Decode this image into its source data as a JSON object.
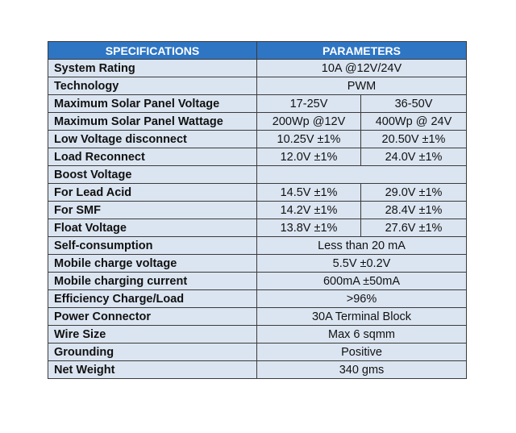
{
  "header": {
    "col1": "SPECIFICATIONS",
    "col2": "PARAMETERS"
  },
  "rows": [
    {
      "label": "System Rating",
      "value": "10A @12V/24V"
    },
    {
      "label": "Technology",
      "value": "PWM"
    },
    {
      "label": "Maximum Solar Panel Voltage",
      "v12": "17-25V",
      "v24": "36-50V"
    },
    {
      "label": "Maximum Solar Panel Wattage",
      "v12": "200Wp @12V",
      "v24": "400Wp @ 24V"
    },
    {
      "label": "Low Voltage disconnect",
      "v12": "10.25V ±1%",
      "v24": "20.50V ±1%"
    },
    {
      "label": "Load Reconnect",
      "v12": "12.0V ±1%",
      "v24": "24.0V ±1%"
    },
    {
      "label": "Boost Voltage",
      "value": ""
    },
    {
      "label": "For Lead Acid",
      "v12": "14.5V ±1%",
      "v24": "29.0V ±1%"
    },
    {
      "label": "For SMF",
      "v12": "14.2V ±1%",
      "v24": "28.4V ±1%"
    },
    {
      "label": "Float Voltage",
      "v12": "13.8V ±1%",
      "v24": "27.6V ±1%"
    },
    {
      "label": "Self-consumption",
      "value": "Less than 20 mA"
    },
    {
      "label": "Mobile charge voltage",
      "value": "5.5V ±0.2V"
    },
    {
      "label": "Mobile charging current",
      "value": "600mA ±50mA"
    },
    {
      "label": "Efficiency Charge/Load",
      "value": ">96%"
    },
    {
      "label": "Power Connector",
      "value": "30A Terminal Block"
    },
    {
      "label": "Wire Size",
      "value": "Max 6 sqmm"
    },
    {
      "label": "Grounding",
      "value": "Positive"
    },
    {
      "label": "Net Weight",
      "value": "340 gms"
    }
  ]
}
